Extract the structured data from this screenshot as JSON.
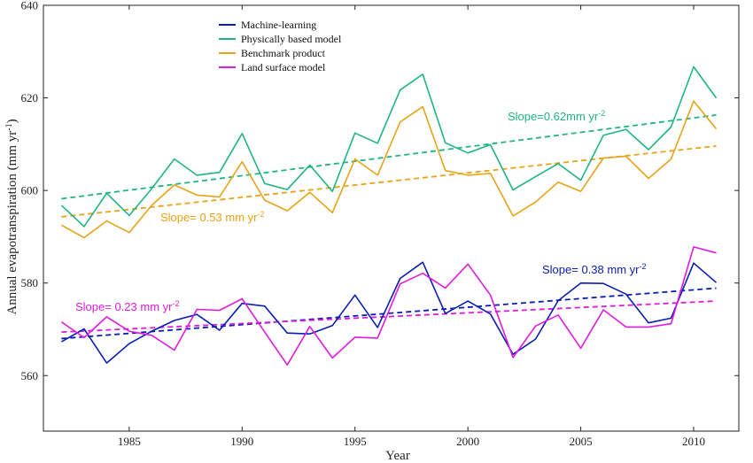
{
  "chart_data": {
    "type": "line",
    "xlabel": "Year",
    "ylabel": "Annual evapotranspiration (mm yr",
    "ylabel_sup": "-1",
    "ylabel_tail": ")",
    "xlim": [
      1981.2,
      2012.0
    ],
    "ylim": [
      548,
      640
    ],
    "xticks": [
      1985,
      1990,
      1995,
      2000,
      2005,
      2010
    ],
    "yticks": [
      560,
      580,
      600,
      620,
      640
    ],
    "grid": false,
    "legend_position": "top-left",
    "x": [
      1982,
      1983,
      1984,
      1985,
      1986,
      1987,
      1988,
      1989,
      1990,
      1991,
      1992,
      1993,
      1994,
      1995,
      1996,
      1997,
      1998,
      1999,
      2000,
      2001,
      2002,
      2003,
      2004,
      2005,
      2006,
      2007,
      2008,
      2009,
      2010,
      2011
    ],
    "series": [
      {
        "name": "Machine-learning",
        "color": "#0a1eb4",
        "values": [
          567.3,
          570.1,
          562.7,
          566.9,
          569.6,
          571.9,
          573.2,
          569.8,
          575.6,
          575.0,
          569.2,
          569.0,
          570.8,
          577.4,
          570.4,
          581.0,
          584.5,
          573.4,
          576.1,
          573.3,
          564.6,
          567.9,
          576.2,
          580.0,
          579.9,
          577.6,
          571.4,
          572.4,
          584.3,
          580.1
        ],
        "trend": [
          568.0,
          578.9
        ],
        "slope_label": "Slope= 0.38 mm yr",
        "slope_sup": "-2"
      },
      {
        "name": "Physically based model",
        "color": "#1fb486",
        "values": [
          596.8,
          592.2,
          599.4,
          594.6,
          600.4,
          606.8,
          603.3,
          603.9,
          612.3,
          601.5,
          600.2,
          605.5,
          599.8,
          612.4,
          610.2,
          621.7,
          625.1,
          610.3,
          608.1,
          609.9,
          600.1,
          603.0,
          605.8,
          602.2,
          611.9,
          613.2,
          608.8,
          613.7,
          626.7,
          620.0
        ],
        "trend": [
          598.2,
          616.3
        ],
        "slope_label": "Slope=0.62mm yr",
        "slope_sup": "-2"
      },
      {
        "name": "Benchmark product",
        "color": "#e8a317",
        "values": [
          592.5,
          589.8,
          593.4,
          590.9,
          596.8,
          601.2,
          599.0,
          598.6,
          606.2,
          597.9,
          595.6,
          599.6,
          595.2,
          606.8,
          603.3,
          614.8,
          618.1,
          604.3,
          603.3,
          603.7,
          594.5,
          597.5,
          601.8,
          599.8,
          607.0,
          607.4,
          602.6,
          606.8,
          619.3,
          613.3
        ],
        "trend": [
          594.3,
          609.6
        ],
        "slope_label": "Slope= 0.53 mm yr",
        "slope_sup": "-2"
      },
      {
        "name": "Land surface model",
        "color": "#e01adf",
        "values": [
          571.6,
          568.2,
          572.7,
          569.6,
          568.7,
          565.5,
          574.3,
          574.1,
          576.6,
          569.4,
          562.3,
          570.6,
          563.8,
          568.3,
          568.1,
          579.8,
          582.1,
          578.9,
          584.1,
          577.4,
          563.9,
          570.7,
          573.1,
          565.9,
          574.2,
          570.5,
          570.5,
          571.2,
          587.8,
          586.5
        ],
        "trend": [
          569.4,
          576.1
        ],
        "slope_label": "Slope= 0.23 mm yr",
        "slope_sup": "-2"
      }
    ]
  }
}
